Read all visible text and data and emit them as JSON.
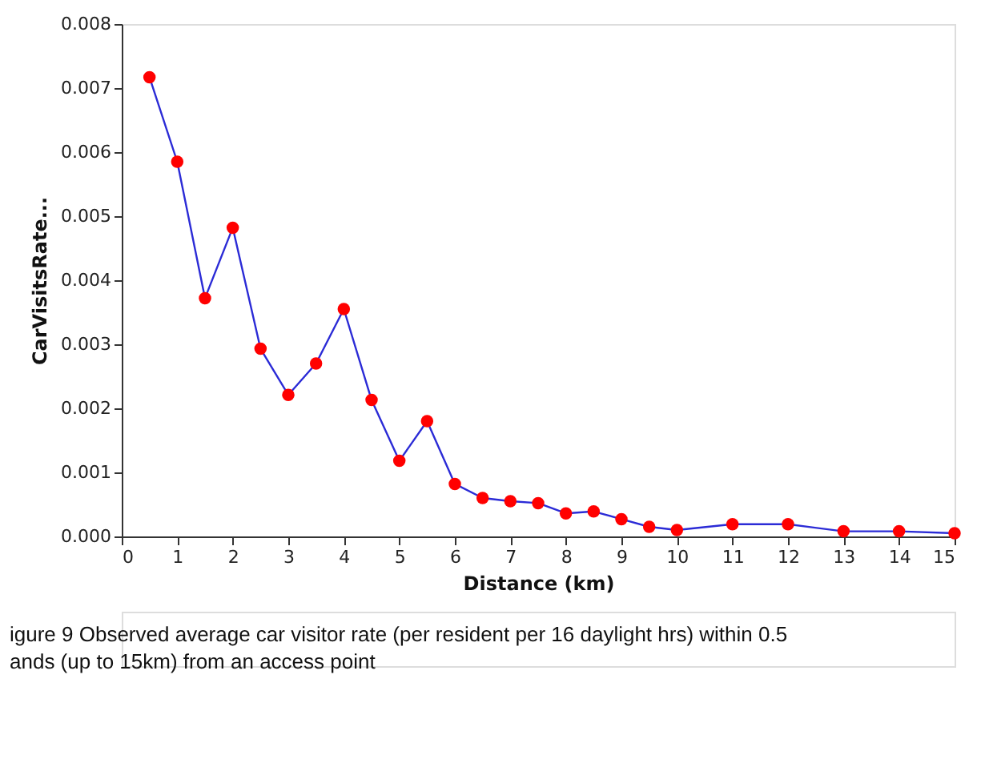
{
  "chart_data": {
    "type": "line",
    "xlabel": "Distance (km)",
    "ylabel": "CarVisitsRate...",
    "x": [
      0.5,
      1,
      1.5,
      2,
      2.5,
      3,
      3.5,
      4,
      4.5,
      5,
      5.5,
      6,
      6.5,
      7,
      7.5,
      8,
      8.5,
      9,
      9.5,
      10,
      11,
      12,
      13,
      14,
      15
    ],
    "series": [
      {
        "color": "#2b2bd6",
        "line_style": "solid",
        "values": [
          0.00717,
          0.00585,
          0.00372,
          0.00482,
          0.00293,
          0.00221,
          0.0027,
          0.00355,
          0.00213,
          0.00118,
          0.0018,
          0.00082,
          0.0006,
          0.00055,
          0.00052,
          0.00036,
          0.00039,
          0.00027,
          0.00015,
          0.0001,
          0.00019,
          0.00019,
          8e-05,
          8e-05,
          5e-05
        ]
      },
      {
        "type": "scatter",
        "color": "#ff0000",
        "marker": "circle",
        "values": [
          0.00717,
          0.00585,
          0.00372,
          0.00482,
          0.00293,
          0.00221,
          0.0027,
          0.00355,
          0.00213,
          0.00118,
          0.0018,
          0.00082,
          0.0006,
          0.00055,
          0.00052,
          0.00036,
          0.00039,
          0.00027,
          0.00015,
          0.0001,
          0.00019,
          0.00019,
          8e-05,
          8e-05,
          5e-05
        ]
      }
    ],
    "xlim": [
      0,
      15
    ],
    "xticks": [
      0,
      1,
      2,
      3,
      4,
      5,
      6,
      7,
      8,
      9,
      10,
      11,
      12,
      13,
      14,
      15
    ],
    "ylim": [
      0,
      0.008
    ],
    "yticks": [
      {
        "value": 0,
        "label": "0.000"
      },
      {
        "value": 0.001,
        "label": "0.001"
      },
      {
        "value": 0.002,
        "label": "0.002"
      },
      {
        "value": 0.003,
        "label": "0.003"
      },
      {
        "value": 0.004,
        "label": "0.004"
      },
      {
        "value": 0.005,
        "label": "0.005"
      },
      {
        "value": 0.006,
        "label": "0.006"
      },
      {
        "value": 0.007,
        "label": "0.007"
      },
      {
        "value": 0.008,
        "label": "0.008"
      }
    ],
    "grid": false,
    "annotations": [
      "igure 9  Observed average car visitor rate (per resident per 16 daylight hrs) within 0.5",
      "ands (up to 15km) from an access point"
    ]
  }
}
